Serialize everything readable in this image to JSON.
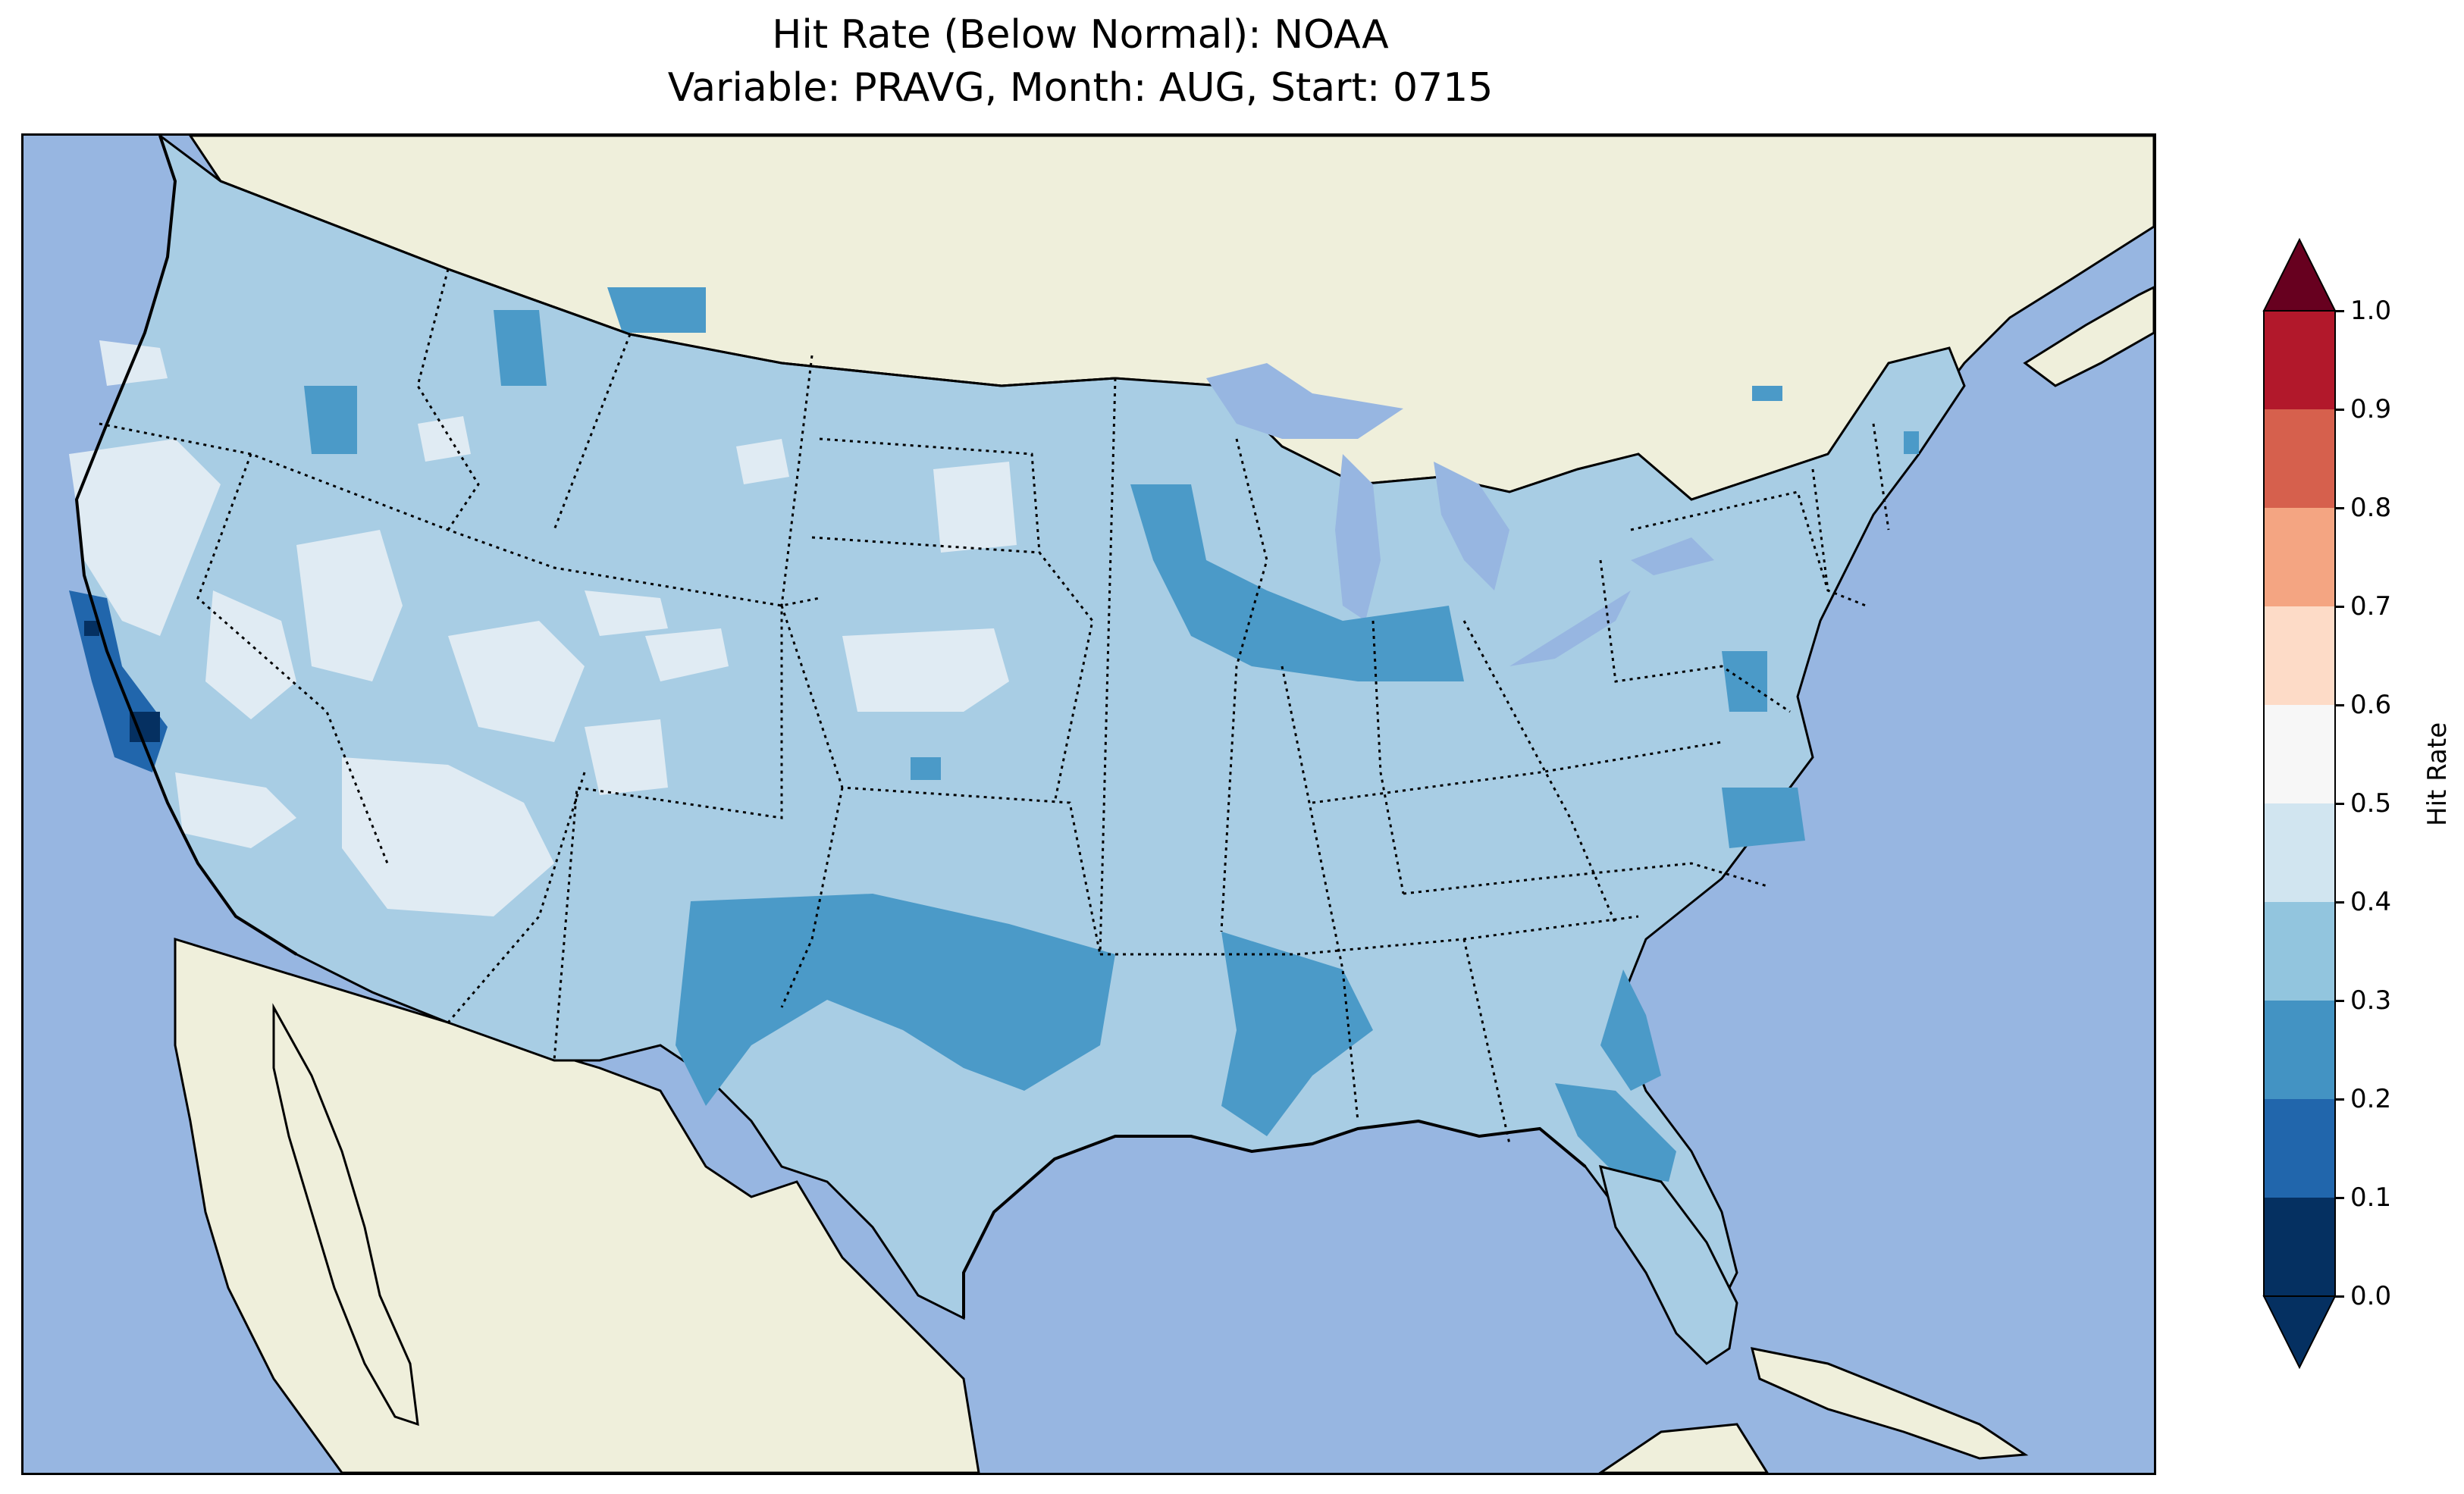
{
  "title_line1": "Hit Rate (Below Normal): NOAA",
  "title_line2": "Variable: PRAVG, Month: AUG, Start: 0715",
  "colorbar": {
    "label": "Hit Rate",
    "ticks": [
      "0.0",
      "0.1",
      "0.2",
      "0.3",
      "0.4",
      "0.5",
      "0.6",
      "0.7",
      "0.8",
      "0.9",
      "1.0"
    ],
    "colors": [
      "#053061",
      "#2166ac",
      "#4393c3",
      "#92c5de",
      "#d1e5f0",
      "#f7f7f7",
      "#fddbc7",
      "#f4a582",
      "#d6604d",
      "#b2182b",
      "#67001f"
    ],
    "under_color": "#053061",
    "over_color": "#67001f"
  },
  "map_colors": {
    "ocean": "#97b6e1",
    "land": "#efefdb",
    "class_0.3_0.4": "#a8cde4",
    "class_0.2_0.3": "#4b9ac8",
    "class_0.4_0.5": "#e0ebf3",
    "class_0.1_0.2": "#2166ac",
    "class_0.0_0.1": "#053061"
  }
}
